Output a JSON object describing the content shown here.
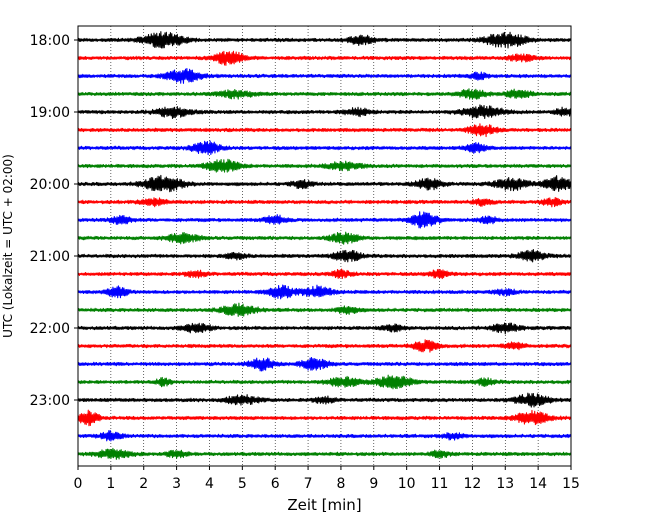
{
  "chart_data": {
    "type": "line",
    "subtype": "seismic-helicorder",
    "xlabel": "Zeit  [min]",
    "ylabel": "UTC (Lokalzeit = UTC + 02:00)",
    "xlim": [
      0,
      15
    ],
    "x_ticks": [
      "0",
      "1",
      "2",
      "3",
      "4",
      "5",
      "6",
      "7",
      "8",
      "9",
      "10",
      "11",
      "12",
      "13",
      "14",
      "15"
    ],
    "y_tick_labels": [
      "18:00",
      "19:00",
      "20:00",
      "21:00",
      "22:00",
      "23:00"
    ],
    "trace_interval_min": 15,
    "trace_colors": [
      "#000000",
      "#ff0000",
      "#0000ff",
      "#008000"
    ],
    "grid": "vertical-dotted",
    "traces": [
      {
        "start": "18:00",
        "color": "#000000",
        "bursts": [
          [
            2.6,
            0.6,
            1.0
          ],
          [
            8.6,
            0.4,
            0.6
          ],
          [
            13.0,
            0.6,
            1.0
          ]
        ]
      },
      {
        "start": "18:15",
        "color": "#ff0000",
        "bursts": [
          [
            4.6,
            0.4,
            1.0
          ],
          [
            13.5,
            0.4,
            0.4
          ]
        ]
      },
      {
        "start": "18:30",
        "color": "#0000ff",
        "bursts": [
          [
            3.2,
            0.5,
            0.9
          ],
          [
            12.2,
            0.3,
            0.4
          ]
        ]
      },
      {
        "start": "18:45",
        "color": "#008000",
        "bursts": [
          [
            4.8,
            0.5,
            0.5
          ],
          [
            12.0,
            0.4,
            0.6
          ],
          [
            13.4,
            0.4,
            0.5
          ]
        ]
      },
      {
        "start": "19:00",
        "color": "#000000",
        "bursts": [
          [
            2.9,
            0.5,
            0.7
          ],
          [
            8.5,
            0.4,
            0.5
          ],
          [
            12.3,
            0.6,
            0.8
          ],
          [
            14.8,
            0.3,
            0.5
          ]
        ]
      },
      {
        "start": "19:15",
        "color": "#ff0000",
        "bursts": [
          [
            12.3,
            0.4,
            0.8
          ]
        ]
      },
      {
        "start": "19:30",
        "color": "#0000ff",
        "bursts": [
          [
            3.9,
            0.4,
            0.9
          ],
          [
            12.1,
            0.3,
            0.6
          ]
        ]
      },
      {
        "start": "19:45",
        "color": "#008000",
        "bursts": [
          [
            4.4,
            0.5,
            0.8
          ],
          [
            8.1,
            0.5,
            0.5
          ]
        ]
      },
      {
        "start": "20:00",
        "color": "#000000",
        "bursts": [
          [
            2.6,
            0.6,
            1.0
          ],
          [
            6.8,
            0.3,
            0.5
          ],
          [
            10.7,
            0.4,
            0.7
          ],
          [
            13.2,
            0.5,
            0.8
          ],
          [
            14.6,
            0.4,
            1.0
          ]
        ]
      },
      {
        "start": "20:15",
        "color": "#ff0000",
        "bursts": [
          [
            2.3,
            0.4,
            0.5
          ],
          [
            12.3,
            0.3,
            0.4
          ],
          [
            14.4,
            0.3,
            0.5
          ]
        ]
      },
      {
        "start": "20:30",
        "color": "#0000ff",
        "bursts": [
          [
            1.3,
            0.3,
            0.6
          ],
          [
            6.0,
            0.3,
            0.6
          ],
          [
            10.5,
            0.4,
            1.0
          ],
          [
            12.5,
            0.3,
            0.4
          ]
        ]
      },
      {
        "start": "20:45",
        "color": "#008000",
        "bursts": [
          [
            3.2,
            0.5,
            0.6
          ],
          [
            8.1,
            0.4,
            0.7
          ]
        ]
      },
      {
        "start": "21:00",
        "color": "#000000",
        "bursts": [
          [
            4.8,
            0.3,
            0.4
          ],
          [
            8.2,
            0.4,
            0.7
          ],
          [
            13.8,
            0.4,
            0.7
          ]
        ]
      },
      {
        "start": "21:15",
        "color": "#ff0000",
        "bursts": [
          [
            3.6,
            0.3,
            0.4
          ],
          [
            8.0,
            0.3,
            0.5
          ],
          [
            11.0,
            0.3,
            0.5
          ]
        ]
      },
      {
        "start": "21:30",
        "color": "#0000ff",
        "bursts": [
          [
            1.2,
            0.3,
            0.7
          ],
          [
            6.2,
            0.4,
            0.8
          ],
          [
            7.3,
            0.4,
            0.8
          ],
          [
            13.0,
            0.3,
            0.4
          ]
        ]
      },
      {
        "start": "21:45",
        "color": "#008000",
        "bursts": [
          [
            4.9,
            0.5,
            0.8
          ],
          [
            8.2,
            0.3,
            0.5
          ]
        ]
      },
      {
        "start": "22:00",
        "color": "#000000",
        "bursts": [
          [
            3.6,
            0.4,
            0.6
          ],
          [
            9.6,
            0.3,
            0.4
          ],
          [
            13.0,
            0.4,
            0.6
          ]
        ]
      },
      {
        "start": "22:15",
        "color": "#ff0000",
        "bursts": [
          [
            10.6,
            0.4,
            0.7
          ],
          [
            13.3,
            0.3,
            0.4
          ]
        ]
      },
      {
        "start": "22:30",
        "color": "#0000ff",
        "bursts": [
          [
            5.6,
            0.4,
            0.8
          ],
          [
            7.2,
            0.4,
            0.8
          ]
        ]
      },
      {
        "start": "22:45",
        "color": "#008000",
        "bursts": [
          [
            2.6,
            0.2,
            0.5
          ],
          [
            8.1,
            0.5,
            0.6
          ],
          [
            9.6,
            0.5,
            0.9
          ],
          [
            12.4,
            0.3,
            0.4
          ]
        ]
      },
      {
        "start": "23:00",
        "color": "#000000",
        "bursts": [
          [
            5.0,
            0.5,
            0.6
          ],
          [
            7.5,
            0.3,
            0.4
          ],
          [
            13.8,
            0.5,
            0.8
          ]
        ]
      },
      {
        "start": "23:15",
        "color": "#ff0000",
        "bursts": [
          [
            0.3,
            0.3,
            1.0
          ],
          [
            13.8,
            0.5,
            0.9
          ]
        ]
      },
      {
        "start": "23:30",
        "color": "#0000ff",
        "bursts": [
          [
            1.0,
            0.3,
            0.6
          ],
          [
            11.4,
            0.3,
            0.4
          ]
        ]
      },
      {
        "start": "23:45",
        "color": "#008000",
        "bursts": [
          [
            1.1,
            0.5,
            0.6
          ],
          [
            3.0,
            0.3,
            0.4
          ],
          [
            11.0,
            0.3,
            0.4
          ]
        ]
      }
    ]
  }
}
